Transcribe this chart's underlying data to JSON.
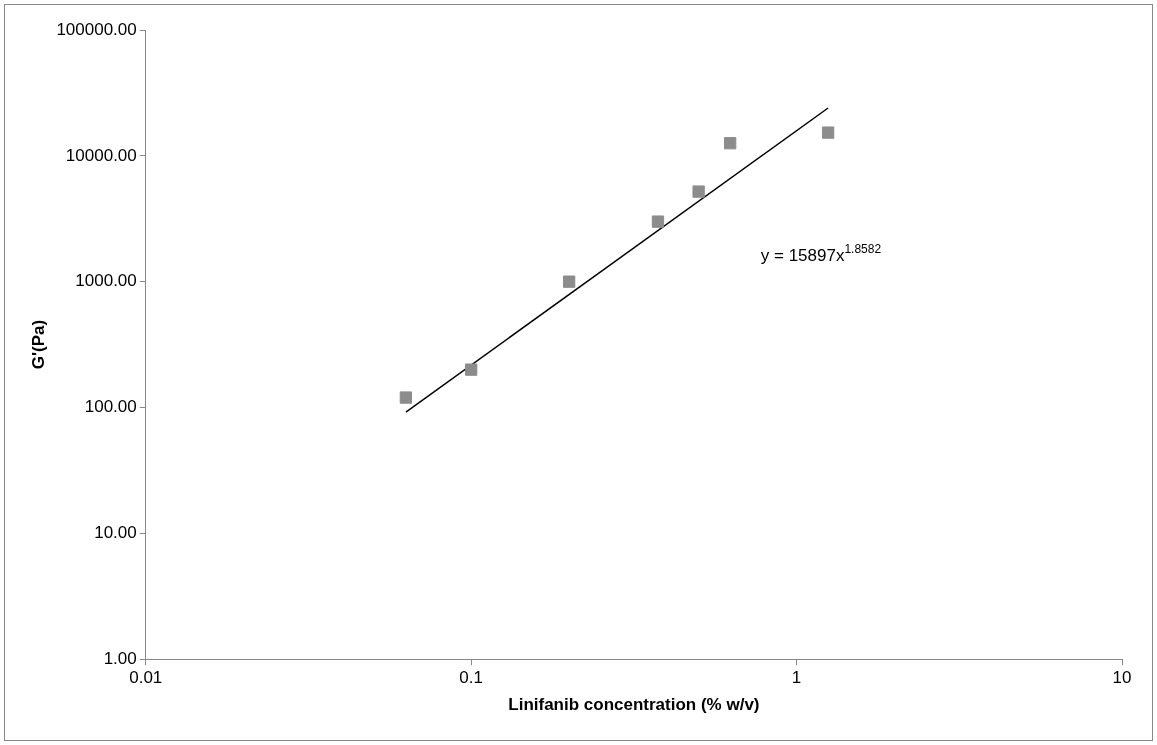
{
  "chart_data": {
    "type": "scatter",
    "xlabel": "Linifanib concentration (% w/v)",
    "ylabel": "G'(Pa)",
    "log": "xy",
    "grid": false,
    "legend": false,
    "marker": "square",
    "xlim": [
      0.01,
      10
    ],
    "xticks": [
      0.01,
      0.1,
      1,
      10
    ],
    "ylim": [
      1,
      100000
    ],
    "yticks": [
      {
        "value": 1,
        "label": "1.00"
      },
      {
        "value": 10,
        "label": "10.00"
      },
      {
        "value": 100,
        "label": "100.00"
      },
      {
        "value": 1000,
        "label": "1000.00"
      },
      {
        "value": 10000,
        "label": "10000.00"
      },
      {
        "value": 100000,
        "label": "100000.00"
      }
    ],
    "series": [
      {
        "type": "scatter",
        "color": "#8c8c8c",
        "x": [
          0.063,
          0.1,
          0.2,
          0.375,
          0.5,
          0.625,
          1.25
        ],
        "values": [
          120,
          200,
          1000,
          3000,
          5200,
          12600,
          15300
        ]
      },
      {
        "type": "line",
        "color": "#000000",
        "marker": "none",
        "x": [
          0.063,
          1.25
        ],
        "values": [
          92,
          24000
        ]
      }
    ],
    "annotations": [
      "y = 15897x$^{1.8582}$"
    ]
  }
}
